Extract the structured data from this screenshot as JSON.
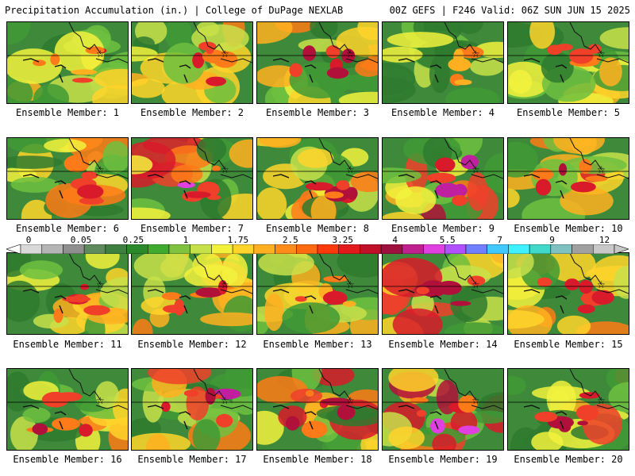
{
  "header": {
    "left": "Precipitation Accumulation (in.) | College of DuPage NEXLAB",
    "right": "00Z GEFS | F246 Valid: 06Z SUN JUN 15 2025"
  },
  "members": [
    {
      "caption": "Ensemble Member: 1",
      "intensity": 0.45
    },
    {
      "caption": "Ensemble Member: 2",
      "intensity": 0.55
    },
    {
      "caption": "Ensemble Member: 3",
      "intensity": 0.6
    },
    {
      "caption": "Ensemble Member: 4",
      "intensity": 0.2
    },
    {
      "caption": "Ensemble Member: 5",
      "intensity": 0.45
    },
    {
      "caption": "Ensemble Member: 6",
      "intensity": 0.55
    },
    {
      "caption": "Ensemble Member: 7",
      "intensity": 0.8
    },
    {
      "caption": "Ensemble Member: 8",
      "intensity": 0.55
    },
    {
      "caption": "Ensemble Member: 9",
      "intensity": 0.85
    },
    {
      "caption": "Ensemble Member: 10",
      "intensity": 0.7
    },
    {
      "caption": "Ensemble Member: 11",
      "intensity": 0.5
    },
    {
      "caption": "Ensemble Member: 12",
      "intensity": 0.6
    },
    {
      "caption": "Ensemble Member: 13",
      "intensity": 0.45
    },
    {
      "caption": "Ensemble Member: 14",
      "intensity": 0.7
    },
    {
      "caption": "Ensemble Member: 15",
      "intensity": 0.55
    },
    {
      "caption": "Ensemble Member: 16",
      "intensity": 0.55
    },
    {
      "caption": "Ensemble Member: 17",
      "intensity": 0.75
    },
    {
      "caption": "Ensemble Member: 18",
      "intensity": 0.8
    },
    {
      "caption": "Ensemble Member: 19",
      "intensity": 0.85
    },
    {
      "caption": "Ensemble Member: 20",
      "intensity": 0.7
    }
  ],
  "colorbar": {
    "labels": [
      "0",
      "0.05",
      "0.25",
      "1",
      "1.75",
      "2.5",
      "3.25",
      "4",
      "5.5",
      "7",
      "9",
      "12"
    ],
    "colors": [
      "#d9d9d9",
      "#b5b5b5",
      "#8f8f8f",
      "#5e8a5e",
      "#3f7f3f",
      "#2a8a2a",
      "#3faa2f",
      "#7fc23f",
      "#c6e04a",
      "#f2f23d",
      "#ffd42a",
      "#ffb020",
      "#ff8c1a",
      "#ff6a10",
      "#ff3a0a",
      "#e31a1c",
      "#c0102a",
      "#a0103f",
      "#c0208f",
      "#e040e0",
      "#b050ff",
      "#6f7fff",
      "#40c8ff",
      "#40f0ff",
      "#40d8c8",
      "#7fc0c0",
      "#a0a0a0",
      "#c8c8c8"
    ]
  }
}
